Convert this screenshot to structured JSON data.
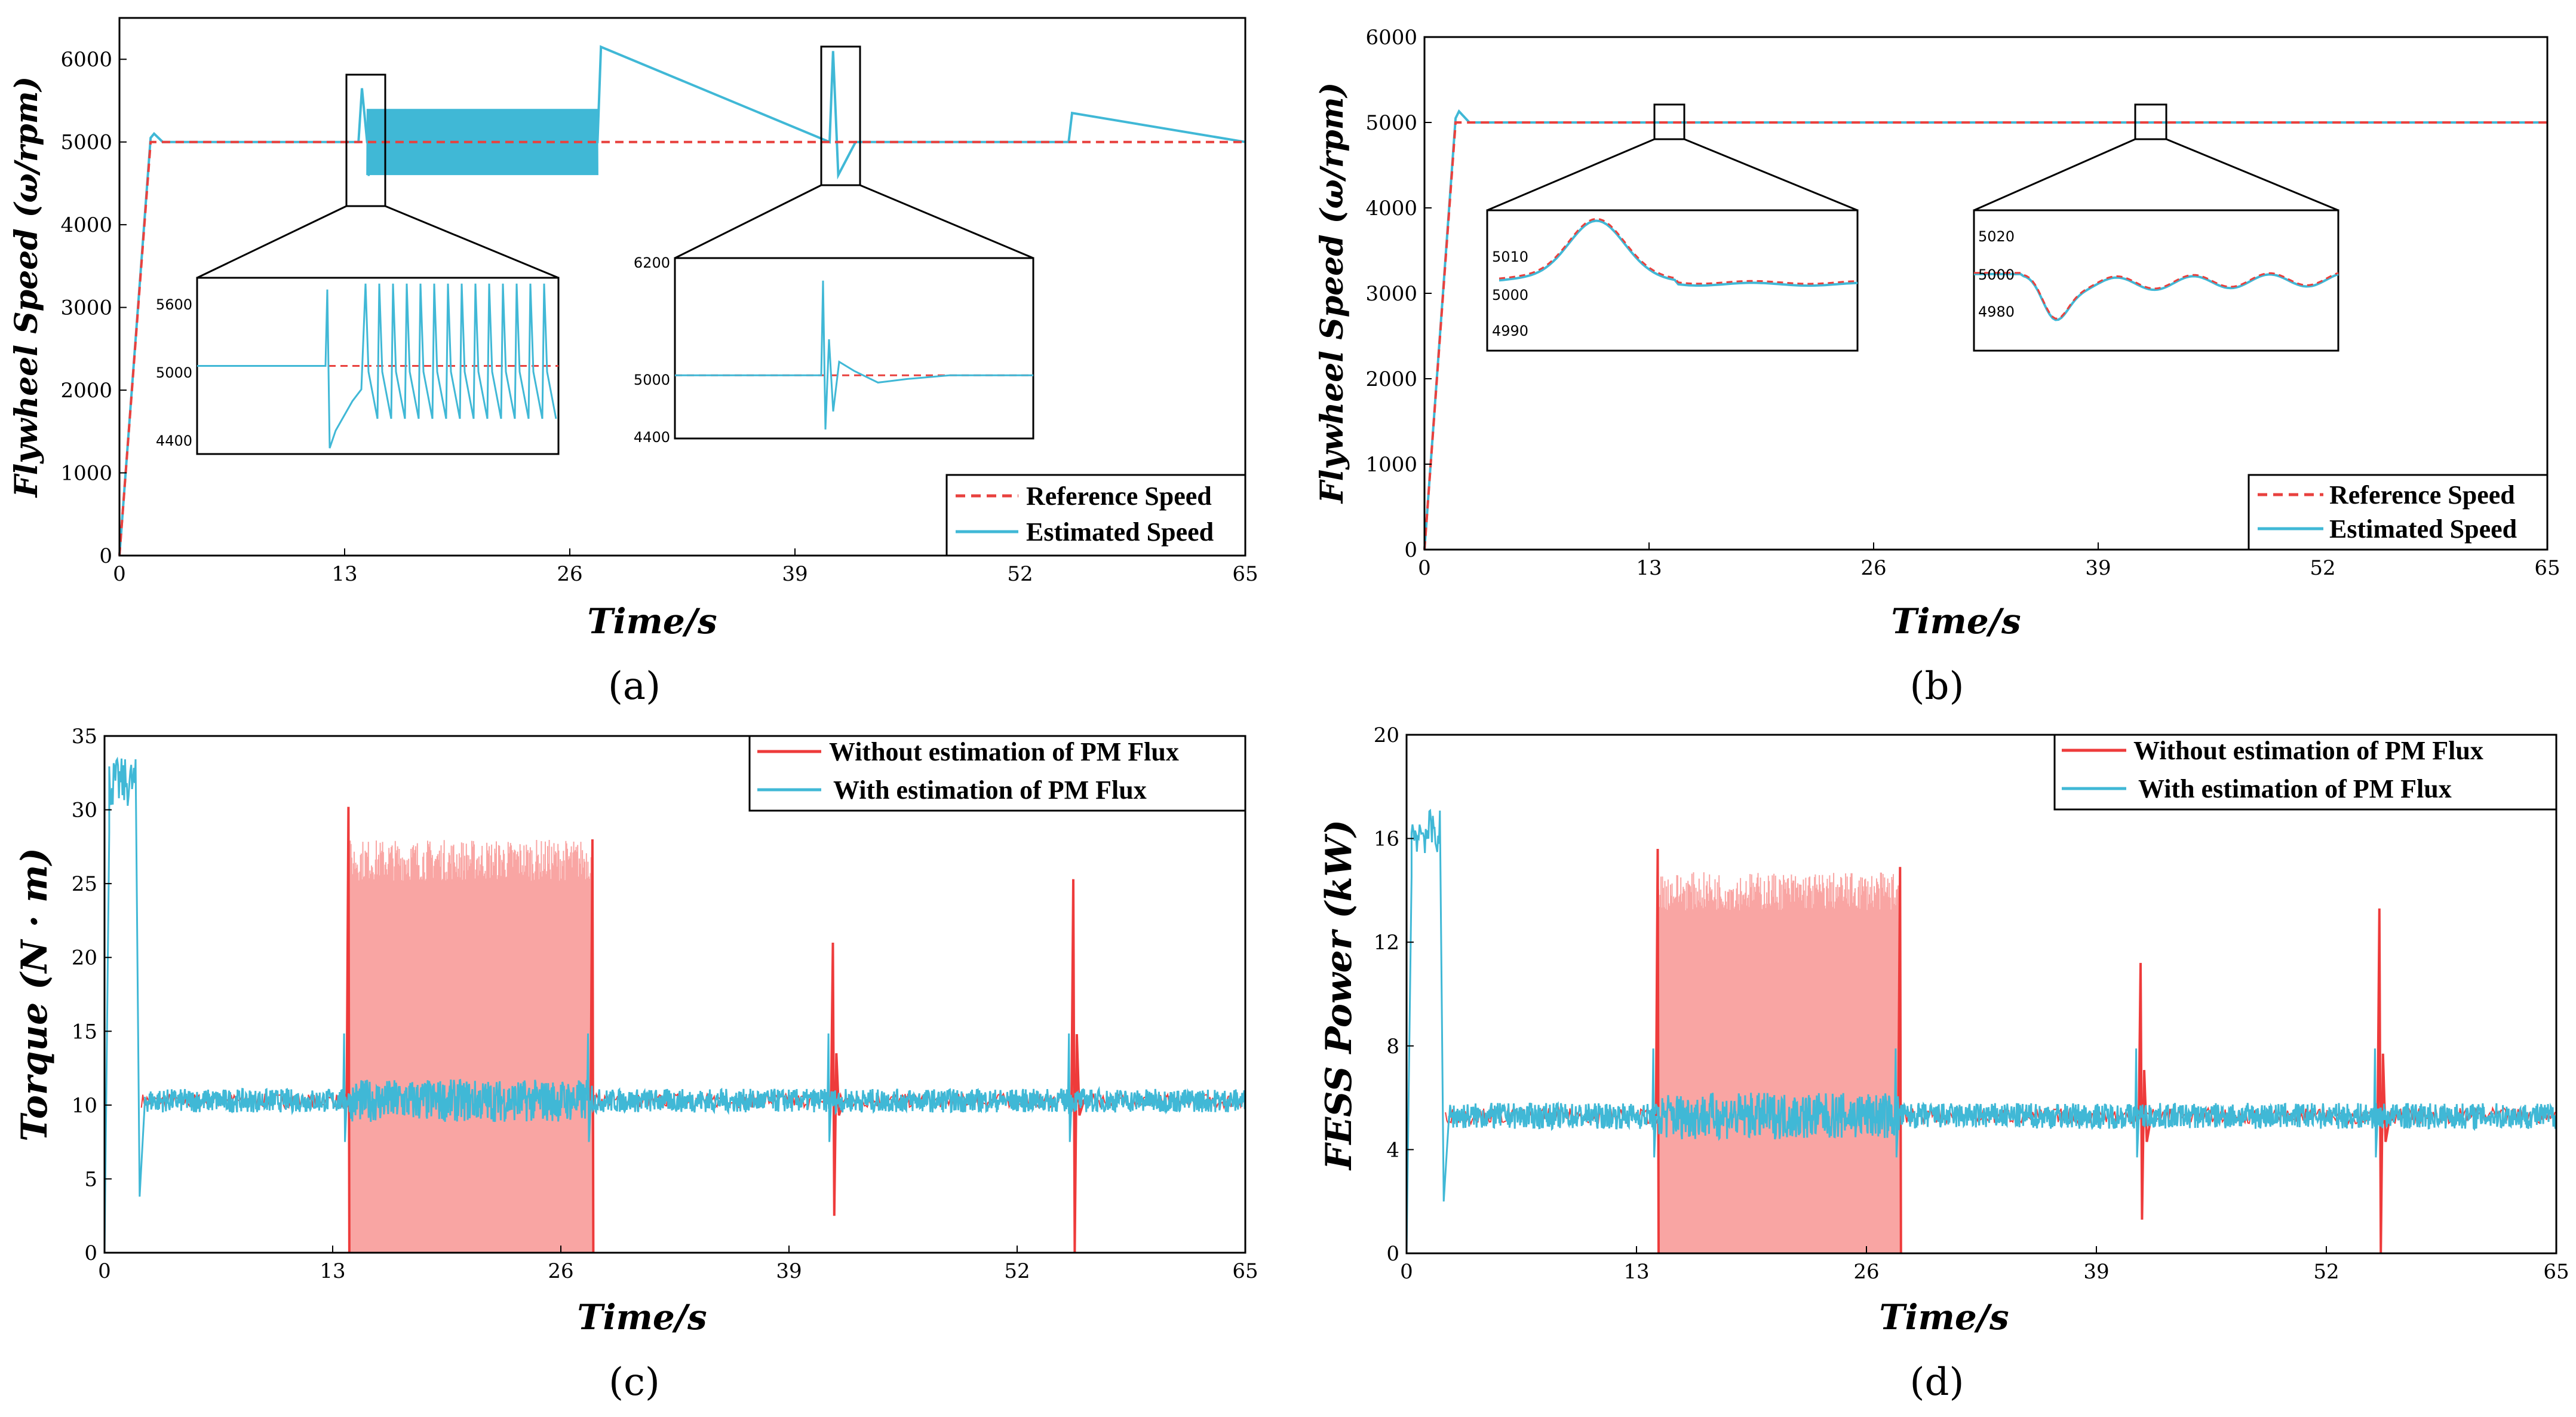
{
  "colors": {
    "reference": "#e8413e",
    "estimated": "#40b8d6",
    "without": "#ee3b3b",
    "without_light": "#f9a5a3",
    "with": "#40b8d6"
  },
  "chart_data": [
    {
      "id": "a",
      "type": "line",
      "caption": "(a)",
      "xlabel": "Time/s",
      "ylabel": "Flywheel Speed (ω/rpm)",
      "xlim": [
        0,
        65
      ],
      "ylim": [
        0,
        6500
      ],
      "xticks": [
        0,
        13,
        26,
        39,
        52,
        65
      ],
      "yticks": [
        0,
        1000,
        2000,
        3000,
        4000,
        5000,
        6000
      ],
      "series": [
        {
          "name": "Reference  Speed",
          "style": "dashed",
          "x": [
            0,
            1.8,
            65
          ],
          "y": [
            0,
            5000,
            5000
          ]
        },
        {
          "name": "Estimated  Speed",
          "style": "solid",
          "x": [
            0,
            1.8,
            2.0,
            2.5,
            13.8,
            14.0,
            14.3,
            27.6,
            27.8,
            41.0,
            41.2,
            41.5,
            42.5,
            54.8,
            55.0,
            65
          ],
          "y": [
            0,
            5050,
            5100,
            5000,
            5000,
            5650,
            5000,
            5000,
            6150,
            5000,
            6100,
            4600,
            5000,
            5000,
            5350,
            5000
          ],
          "oscillation": {
            "from": 14.3,
            "to": 27.6,
            "min": 4600,
            "max": 5400
          }
        }
      ],
      "insets": [
        {
          "xtick_labels": [
            "4400",
            "5000",
            "5600"
          ],
          "ylim": [
            4250,
            5750
          ]
        },
        {
          "xtick_labels": [
            "4400",
            "5000",
            "6200"
          ],
          "ylim": [
            4300,
            6300
          ]
        }
      ],
      "legend": [
        "Reference  Speed",
        "Estimated  Speed"
      ]
    },
    {
      "id": "b",
      "type": "line",
      "caption": "(b)",
      "xlabel": "Time/s",
      "ylabel": "Flywheel Speed (ω/rpm)",
      "xlim": [
        0,
        65
      ],
      "ylim": [
        0,
        6000
      ],
      "xticks": [
        0,
        13,
        26,
        39,
        52,
        65
      ],
      "yticks": [
        0,
        1000,
        2000,
        3000,
        4000,
        5000,
        6000
      ],
      "series": [
        {
          "name": "Reference  Speed",
          "style": "dashed",
          "x": [
            0,
            1.8,
            65
          ],
          "y": [
            0,
            5000,
            5000
          ]
        },
        {
          "name": "Estimated  Speed",
          "style": "solid",
          "x": [
            0,
            1.8,
            2.0,
            2.6,
            65
          ],
          "y": [
            0,
            5050,
            5130,
            5000,
            5000
          ]
        }
      ],
      "insets": [
        {
          "tick_labels": [
            "4990",
            "5000",
            "5010"
          ],
          "ylim": [
            4985,
            5015
          ]
        },
        {
          "tick_labels": [
            "4980",
            "5000",
            "5020"
          ],
          "ylim": [
            4970,
            5025
          ]
        }
      ],
      "legend": [
        "Reference  Speed",
        "Estimated  Speed"
      ]
    },
    {
      "id": "c",
      "type": "line",
      "caption": "(c)",
      "xlabel": "Time/s",
      "ylabel": "Torque (N · m)",
      "xlim": [
        0,
        65
      ],
      "ylim": [
        0,
        35
      ],
      "xticks": [
        0,
        13,
        26,
        39,
        52,
        65
      ],
      "yticks": [
        0,
        5,
        10,
        15,
        20,
        25,
        30,
        35
      ],
      "series": [
        {
          "name": "Without estimation of  PM Flux",
          "style": "solid",
          "spikes": [
            {
              "t": 13.9,
              "top": 30.2
            },
            {
              "t": 27.8,
              "top": 28
            },
            {
              "t": 41.5,
              "top": 21,
              "bottom": 2.5
            },
            {
              "t": 55.2,
              "top": 25.3,
              "bottom": 0
            }
          ],
          "oscillation": {
            "from": 14.0,
            "to": 27.8,
            "min": 0,
            "max": 28
          }
        },
        {
          "name": "With estimation of  PM Flux",
          "style": "solid",
          "startup_peak": 33.5,
          "startup_end": 1.8,
          "dip": 3.8,
          "steady_mean": 10.3,
          "band": 0.8
        }
      ],
      "legend": [
        "Without estimation of  PM Flux",
        "With estimation of  PM Flux"
      ]
    },
    {
      "id": "d",
      "type": "line",
      "caption": "(d)",
      "xlabel": "Time/s",
      "ylabel": "FESS Power (kW)",
      "xlim": [
        0,
        65
      ],
      "ylim": [
        0,
        20
      ],
      "xticks": [
        0,
        13,
        26,
        39,
        52,
        65
      ],
      "yticks": [
        0,
        4,
        8,
        12,
        16,
        20
      ],
      "series": [
        {
          "name": "Without estimation of  PM Flux",
          "style": "solid",
          "spikes": [
            {
              "t": 14.2,
              "top": 15.6
            },
            {
              "t": 27.9,
              "top": 14.9
            },
            {
              "t": 41.5,
              "top": 11.2,
              "bottom": 1.3
            },
            {
              "t": 55.0,
              "top": 13.3,
              "bottom": 0
            }
          ],
          "oscillation": {
            "from": 14.2,
            "to": 27.9,
            "min": 0,
            "max": 14.7
          }
        },
        {
          "name": "With estimation of  PM Flux",
          "style": "solid",
          "startup_peak": 17.1,
          "startup_end": 1.9,
          "dip": 2.0,
          "steady_mean": 5.3,
          "band": 0.5
        }
      ],
      "legend": [
        "Without estimation of  PM Flux",
        "With estimation of  PM Flux"
      ]
    }
  ]
}
